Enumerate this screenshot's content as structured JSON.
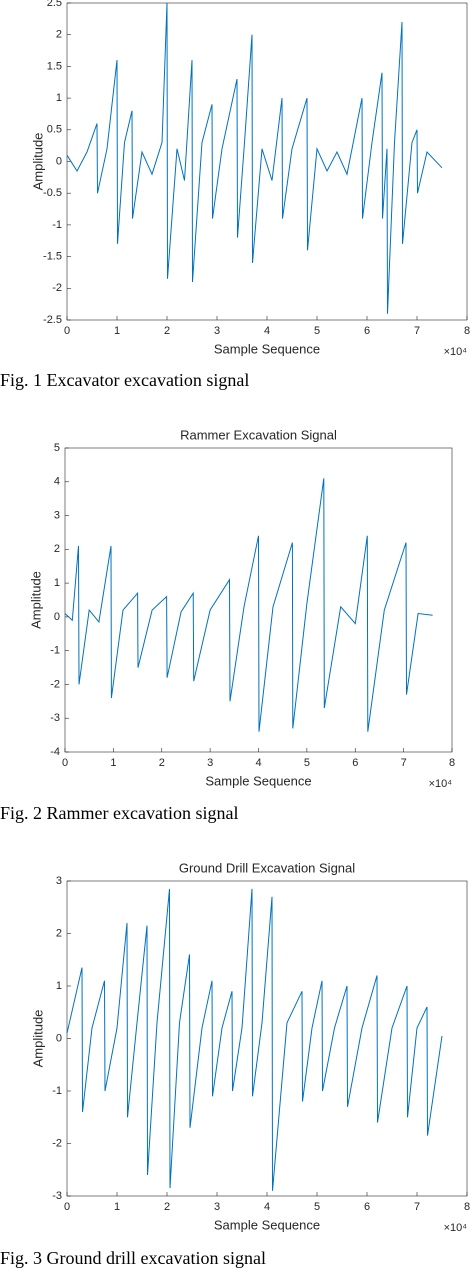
{
  "chart_data": [
    {
      "type": "line",
      "caption": "Fig. 1 Excavator excavation signal",
      "xlabel": "Sample Sequence",
      "ylabel": "Amplitude",
      "x_multiplier": "×10⁴",
      "color": "#0072bd",
      "x": [
        0,
        0.2,
        0.4,
        0.6,
        0.61,
        0.8,
        1.0,
        1.01,
        1.15,
        1.3,
        1.31,
        1.5,
        1.7,
        1.9,
        2.0,
        2.01,
        2.2,
        2.35,
        2.5,
        2.51,
        2.7,
        2.9,
        2.91,
        3.1,
        3.4,
        3.41,
        3.55,
        3.7,
        3.71,
        3.9,
        4.1,
        4.3,
        4.31,
        4.5,
        4.8,
        4.81,
        5.0,
        5.2,
        5.4,
        5.6,
        5.9,
        5.91,
        6.1,
        6.3,
        6.31,
        6.4,
        6.41,
        6.55,
        6.7,
        6.71,
        6.9,
        7.0,
        7.01,
        7.2,
        7.5
      ],
      "values": [
        0.1,
        -0.15,
        0.15,
        0.6,
        -0.5,
        0.2,
        1.6,
        -1.3,
        0.3,
        0.8,
        -0.9,
        0.15,
        -0.2,
        0.3,
        2.5,
        -1.85,
        0.2,
        -0.3,
        1.6,
        -1.9,
        0.3,
        0.9,
        -0.9,
        0.2,
        1.3,
        -1.2,
        0.3,
        2.0,
        -1.6,
        0.2,
        -0.3,
        1.0,
        -0.9,
        0.2,
        1.0,
        -1.4,
        0.2,
        -0.15,
        0.15,
        -0.2,
        1.0,
        -0.9,
        0.3,
        1.4,
        -0.9,
        0.2,
        -2.4,
        0.3,
        2.2,
        -1.3,
        0.3,
        0.5,
        -0.5,
        0.15,
        -0.1
      ],
      "xlim": [
        0,
        8
      ],
      "xticks": [
        0,
        1,
        2,
        3,
        4,
        5,
        6,
        7,
        8
      ],
      "ylim": [
        -2.5,
        2.5
      ],
      "yticks": [
        -2.5,
        -2,
        -1.5,
        -1,
        -0.5,
        0,
        0.5,
        1,
        1.5,
        2,
        2.5
      ]
    },
    {
      "type": "line",
      "title": "Rammer Excavation Signal",
      "caption": "Fig. 2 Rammer excavation signal",
      "xlabel": "Sample Sequence",
      "ylabel": "Amplitude",
      "x_multiplier": "×10⁴",
      "color": "#0072bd",
      "x": [
        0,
        0.15,
        0.28,
        0.29,
        0.5,
        0.7,
        0.95,
        0.96,
        1.2,
        1.5,
        1.51,
        1.8,
        2.1,
        2.11,
        2.4,
        2.65,
        2.66,
        3.0,
        3.4,
        3.41,
        3.7,
        4.0,
        4.01,
        4.3,
        4.7,
        4.71,
        5.0,
        5.35,
        5.36,
        5.7,
        6.0,
        6.25,
        6.26,
        6.6,
        7.05,
        7.06,
        7.3,
        7.6
      ],
      "values": [
        0.1,
        -0.1,
        2.1,
        -2.0,
        0.2,
        -0.15,
        2.1,
        -2.4,
        0.2,
        0.7,
        -1.5,
        0.2,
        0.6,
        -1.8,
        0.15,
        0.7,
        -1.9,
        0.2,
        1.1,
        -2.5,
        0.3,
        2.4,
        -3.4,
        0.3,
        2.2,
        -3.3,
        0.4,
        4.1,
        -2.7,
        0.3,
        -0.2,
        2.4,
        -3.4,
        0.2,
        2.2,
        -2.3,
        0.1,
        0.05
      ],
      "xlim": [
        0,
        8
      ],
      "xticks": [
        0,
        1,
        2,
        3,
        4,
        5,
        6,
        7,
        8
      ],
      "ylim": [
        -4,
        5
      ],
      "yticks": [
        -4,
        -3,
        -2,
        -1,
        0,
        1,
        2,
        3,
        4,
        5
      ]
    },
    {
      "type": "line",
      "title": "Ground Drill Excavation Signal",
      "caption": "Fig. 3 Ground drill excavation signal",
      "xlabel": "Sample Sequence",
      "ylabel": "Amplitude",
      "x_multiplier": "×10⁴",
      "color": "#0072bd",
      "x": [
        0,
        0.3,
        0.31,
        0.5,
        0.75,
        0.76,
        1.0,
        1.2,
        1.21,
        1.4,
        1.6,
        1.61,
        1.8,
        2.05,
        2.06,
        2.25,
        2.45,
        2.46,
        2.7,
        2.9,
        2.91,
        3.1,
        3.3,
        3.31,
        3.5,
        3.7,
        3.71,
        3.9,
        4.1,
        4.11,
        4.4,
        4.7,
        4.71,
        4.9,
        5.1,
        5.11,
        5.35,
        5.6,
        5.61,
        5.9,
        6.2,
        6.21,
        6.5,
        6.8,
        6.81,
        7.0,
        7.2,
        7.21,
        7.5
      ],
      "values": [
        0.1,
        1.35,
        -1.4,
        0.2,
        1.1,
        -1.0,
        0.2,
        2.2,
        -1.5,
        0.3,
        2.15,
        -2.6,
        0.3,
        2.85,
        -2.85,
        0.3,
        1.6,
        -1.7,
        0.2,
        1.1,
        -1.1,
        0.2,
        0.9,
        -1.0,
        0.2,
        2.85,
        -1.1,
        0.3,
        2.7,
        -2.9,
        0.3,
        0.9,
        -1.2,
        0.2,
        1.1,
        -1.0,
        0.2,
        1.0,
        -1.3,
        0.2,
        1.2,
        -1.6,
        0.2,
        1.0,
        -1.5,
        0.2,
        0.6,
        -1.85,
        0.05
      ],
      "xlim": [
        0,
        8
      ],
      "xticks": [
        0,
        1,
        2,
        3,
        4,
        5,
        6,
        7,
        8
      ],
      "ylim": [
        -3,
        3
      ],
      "yticks": [
        -3,
        -2,
        -1,
        0,
        1,
        2,
        3
      ]
    }
  ]
}
